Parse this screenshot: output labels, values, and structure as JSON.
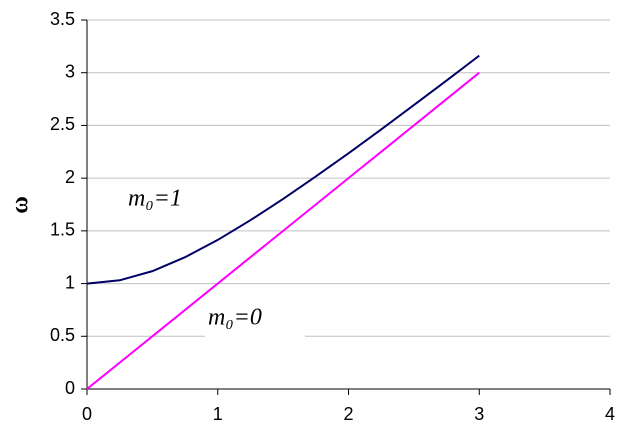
{
  "chart_data": {
    "type": "line",
    "y_label": "ω",
    "x": [
      0,
      0.25,
      0.5,
      0.75,
      1,
      1.25,
      1.5,
      1.75,
      2,
      2.25,
      2.5,
      2.75,
      3
    ],
    "series": [
      {
        "name": "m₀=1",
        "color": "#000066",
        "values": [
          1,
          1.031,
          1.118,
          1.25,
          1.414,
          1.601,
          1.803,
          2.016,
          2.236,
          2.462,
          2.693,
          2.926,
          3.162
        ]
      },
      {
        "name": "m₀=0",
        "color": "#ff00ff",
        "values": [
          0,
          0.25,
          0.5,
          0.75,
          1,
          1.25,
          1.5,
          1.75,
          2,
          2.25,
          2.5,
          2.75,
          3
        ]
      }
    ],
    "xlim": [
      0,
      4
    ],
    "xticks": [
      0,
      1,
      2,
      3,
      4
    ],
    "ylim": [
      0,
      3.5
    ],
    "yticks": [
      0,
      0.5,
      1,
      1.5,
      2,
      2.5,
      3,
      3.5
    ],
    "grid": true
  }
}
